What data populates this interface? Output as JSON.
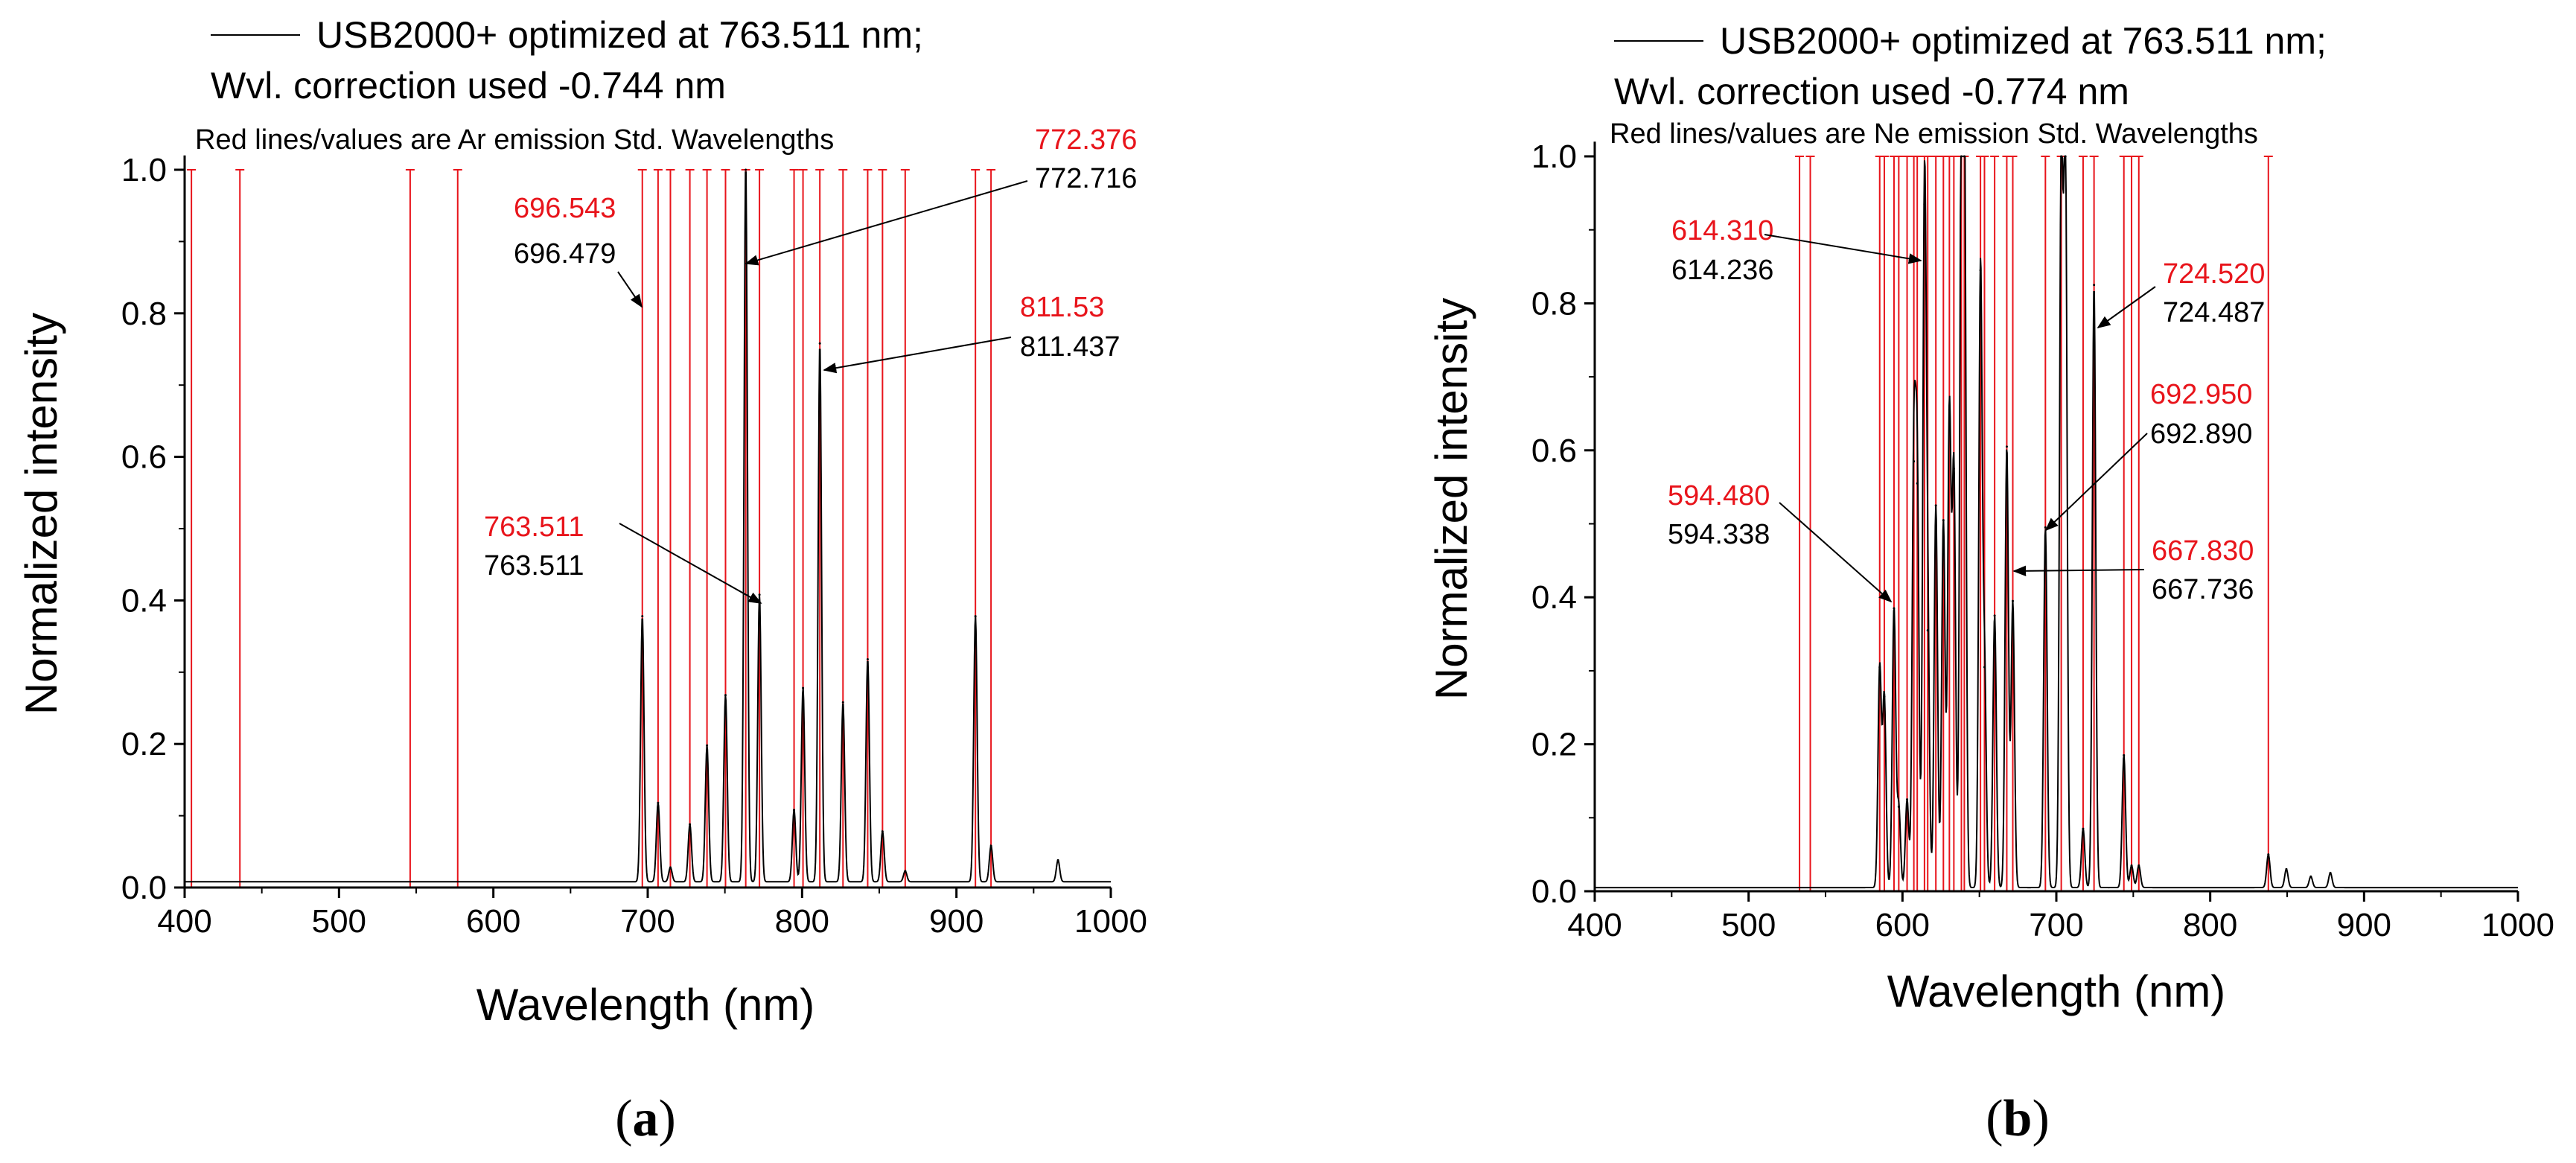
{
  "colors": {
    "reference_line": "#e8141b",
    "spectrum": "#000000",
    "axis": "#000000"
  },
  "chart_data": [
    {
      "type": "line",
      "panel_label": "a",
      "legend_line1": "USB2000+ optimized at 763.511 nm;",
      "legend_line2": "Wvl. correction used -0.744 nm",
      "note": "Red lines/values are Ar emission Std. Wavelengths",
      "xlabel": "Wavelength (nm)",
      "ylabel": "Normalized intensity",
      "xlim": [
        400,
        1000
      ],
      "ylim": [
        0,
        1
      ],
      "xticks": [
        "400",
        "500",
        "600",
        "700",
        "800",
        "900",
        "1000"
      ],
      "yticks": [
        "0.0",
        "0.2",
        "0.4",
        "0.6",
        "0.8",
        "1.0"
      ],
      "reference_lines": [
        404.4,
        435.8,
        546.1,
        576.9,
        696.5,
        706.7,
        714.7,
        727.3,
        738.4,
        750.4,
        763.5,
        772.4,
        794.8,
        800.6,
        811.5,
        826.5,
        842.5,
        852.1,
        866.8,
        912.3,
        922.4
      ],
      "baseline": 0.008,
      "peaks": [
        {
          "x": 696.5,
          "y": 0.37
        },
        {
          "x": 706.7,
          "y": 0.11
        },
        {
          "x": 714.7,
          "y": 0.02
        },
        {
          "x": 727.3,
          "y": 0.08
        },
        {
          "x": 738.4,
          "y": 0.19
        },
        {
          "x": 750.4,
          "y": 0.26
        },
        {
          "x": 763.5,
          "y": 1.0
        },
        {
          "x": 772.4,
          "y": 0.4
        },
        {
          "x": 794.8,
          "y": 0.1
        },
        {
          "x": 800.6,
          "y": 0.27
        },
        {
          "x": 811.5,
          "y": 0.75
        },
        {
          "x": 826.5,
          "y": 0.25
        },
        {
          "x": 842.5,
          "y": 0.31
        },
        {
          "x": 852.1,
          "y": 0.07
        },
        {
          "x": 866.8,
          "y": 0.015
        },
        {
          "x": 912.3,
          "y": 0.37
        },
        {
          "x": 922.4,
          "y": 0.05
        },
        {
          "x": 965.8,
          "y": 0.03
        }
      ],
      "annotations": [
        {
          "std": "696.543",
          "meas": "696.479"
        },
        {
          "std": "772.376",
          "meas": "772.716"
        },
        {
          "std": "811.53",
          "meas": "811.437"
        },
        {
          "std": "763.511",
          "meas": "763.511"
        }
      ]
    },
    {
      "type": "line",
      "panel_label": "b",
      "legend_line1": "USB2000+ optimized at 763.511 nm;",
      "legend_line2": "Wvl. correction used -0.774 nm",
      "note": "Red lines/values are Ne emission Std. Wavelengths",
      "xlabel": "Wavelength (nm)",
      "ylabel": "Normalized intensity",
      "xlim": [
        400,
        1000
      ],
      "ylim": [
        0,
        1
      ],
      "xticks": [
        "400",
        "500",
        "600",
        "700",
        "800",
        "900",
        "1000"
      ],
      "yticks": [
        "0.0",
        "0.2",
        "0.4",
        "0.6",
        "0.8",
        "1.0"
      ],
      "reference_lines": [
        533.1,
        540.1,
        585.2,
        588.2,
        594.5,
        597.6,
        603.0,
        607.4,
        609.6,
        614.3,
        616.4,
        621.7,
        626.6,
        630.5,
        633.4,
        638.3,
        640.2,
        650.7,
        653.3,
        659.9,
        667.8,
        671.7,
        692.9,
        703.2,
        717.4,
        724.5,
        743.9,
        748.9,
        753.6,
        837.8
      ],
      "baseline": 0.005,
      "peaks": [
        {
          "x": 585.2,
          "y": 0.3
        },
        {
          "x": 588.2,
          "y": 0.26
        },
        {
          "x": 594.5,
          "y": 0.38
        },
        {
          "x": 597.6,
          "y": 0.11
        },
        {
          "x": 603.0,
          "y": 0.12
        },
        {
          "x": 607.4,
          "y": 0.58
        },
        {
          "x": 609.6,
          "y": 0.55
        },
        {
          "x": 614.3,
          "y": 0.93
        },
        {
          "x": 616.4,
          "y": 0.35
        },
        {
          "x": 621.7,
          "y": 0.52
        },
        {
          "x": 626.6,
          "y": 0.5
        },
        {
          "x": 630.5,
          "y": 0.65
        },
        {
          "x": 633.4,
          "y": 0.57
        },
        {
          "x": 638.3,
          "y": 1.0
        },
        {
          "x": 640.2,
          "y": 1.0
        },
        {
          "x": 650.7,
          "y": 0.84
        },
        {
          "x": 653.3,
          "y": 0.3
        },
        {
          "x": 659.9,
          "y": 0.37
        },
        {
          "x": 667.8,
          "y": 0.6
        },
        {
          "x": 671.7,
          "y": 0.39
        },
        {
          "x": 692.9,
          "y": 0.49
        },
        {
          "x": 703.2,
          "y": 1.0
        },
        {
          "x": 705.9,
          "y": 1.0
        },
        {
          "x": 717.4,
          "y": 0.08
        },
        {
          "x": 724.5,
          "y": 0.82
        },
        {
          "x": 743.9,
          "y": 0.18
        },
        {
          "x": 748.9,
          "y": 0.03
        },
        {
          "x": 753.6,
          "y": 0.03
        },
        {
          "x": 837.8,
          "y": 0.045
        },
        {
          "x": 849.5,
          "y": 0.025
        },
        {
          "x": 865.4,
          "y": 0.015
        },
        {
          "x": 878.1,
          "y": 0.02
        }
      ],
      "annotations": [
        {
          "std": "614.310",
          "meas": "614.236"
        },
        {
          "std": "724.520",
          "meas": "724.487"
        },
        {
          "std": "692.950",
          "meas": "692.890"
        },
        {
          "std": "594.480",
          "meas": "594.338"
        },
        {
          "std": "667.830",
          "meas": "667.736"
        }
      ]
    }
  ]
}
